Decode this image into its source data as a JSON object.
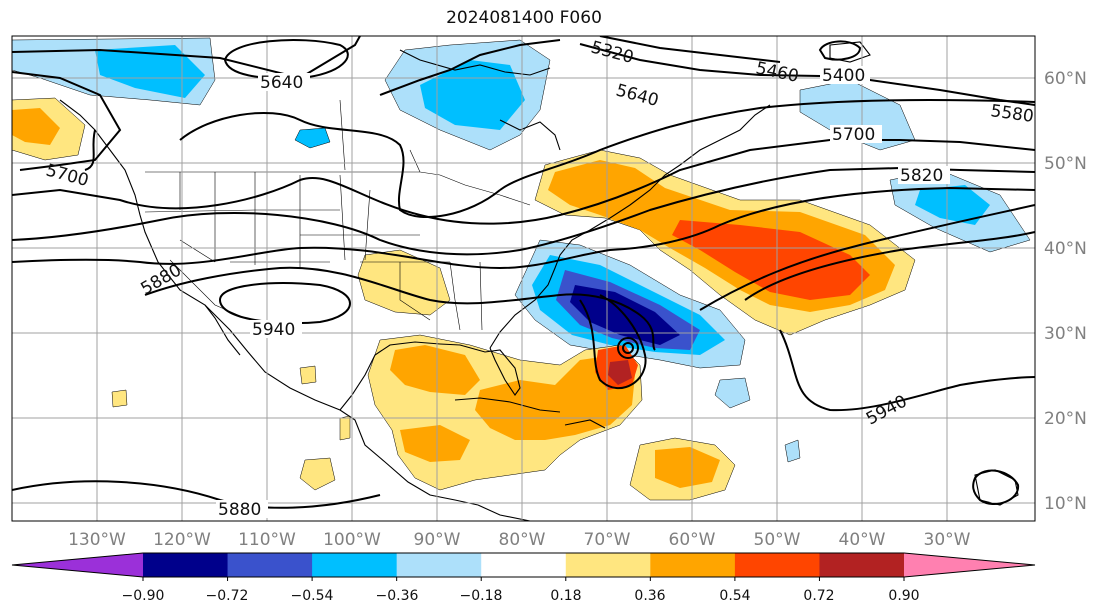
{
  "title": "2024081400 F060",
  "map": {
    "lon_labels": [
      "130°W",
      "120°W",
      "110°W",
      "100°W",
      "90°W",
      "80°W",
      "70°W",
      "60°W",
      "50°W",
      "40°W",
      "30°W"
    ],
    "lat_labels": [
      "60°N",
      "50°N",
      "40°N",
      "30°N",
      "20°N",
      "10°N"
    ],
    "contour_labels": [
      "5640",
      "5640",
      "5700",
      "5700",
      "5460",
      "5400",
      "5580",
      "5820",
      "5880",
      "5940",
      "5940",
      "5880",
      "5320"
    ]
  },
  "colorbar": {
    "ticks": [
      "−0.90",
      "−0.72",
      "−0.54",
      "−0.36",
      "−0.18",
      "0.18",
      "0.36",
      "0.54",
      "0.72",
      "0.90"
    ],
    "colors": [
      "#9b30d9",
      "#00008b",
      "#3a52cc",
      "#00bfff",
      "#ade0fa",
      "#ffffff",
      "#ffe680",
      "#ffa500",
      "#ff4500",
      "#b22222",
      "#ff80b0"
    ]
  }
}
